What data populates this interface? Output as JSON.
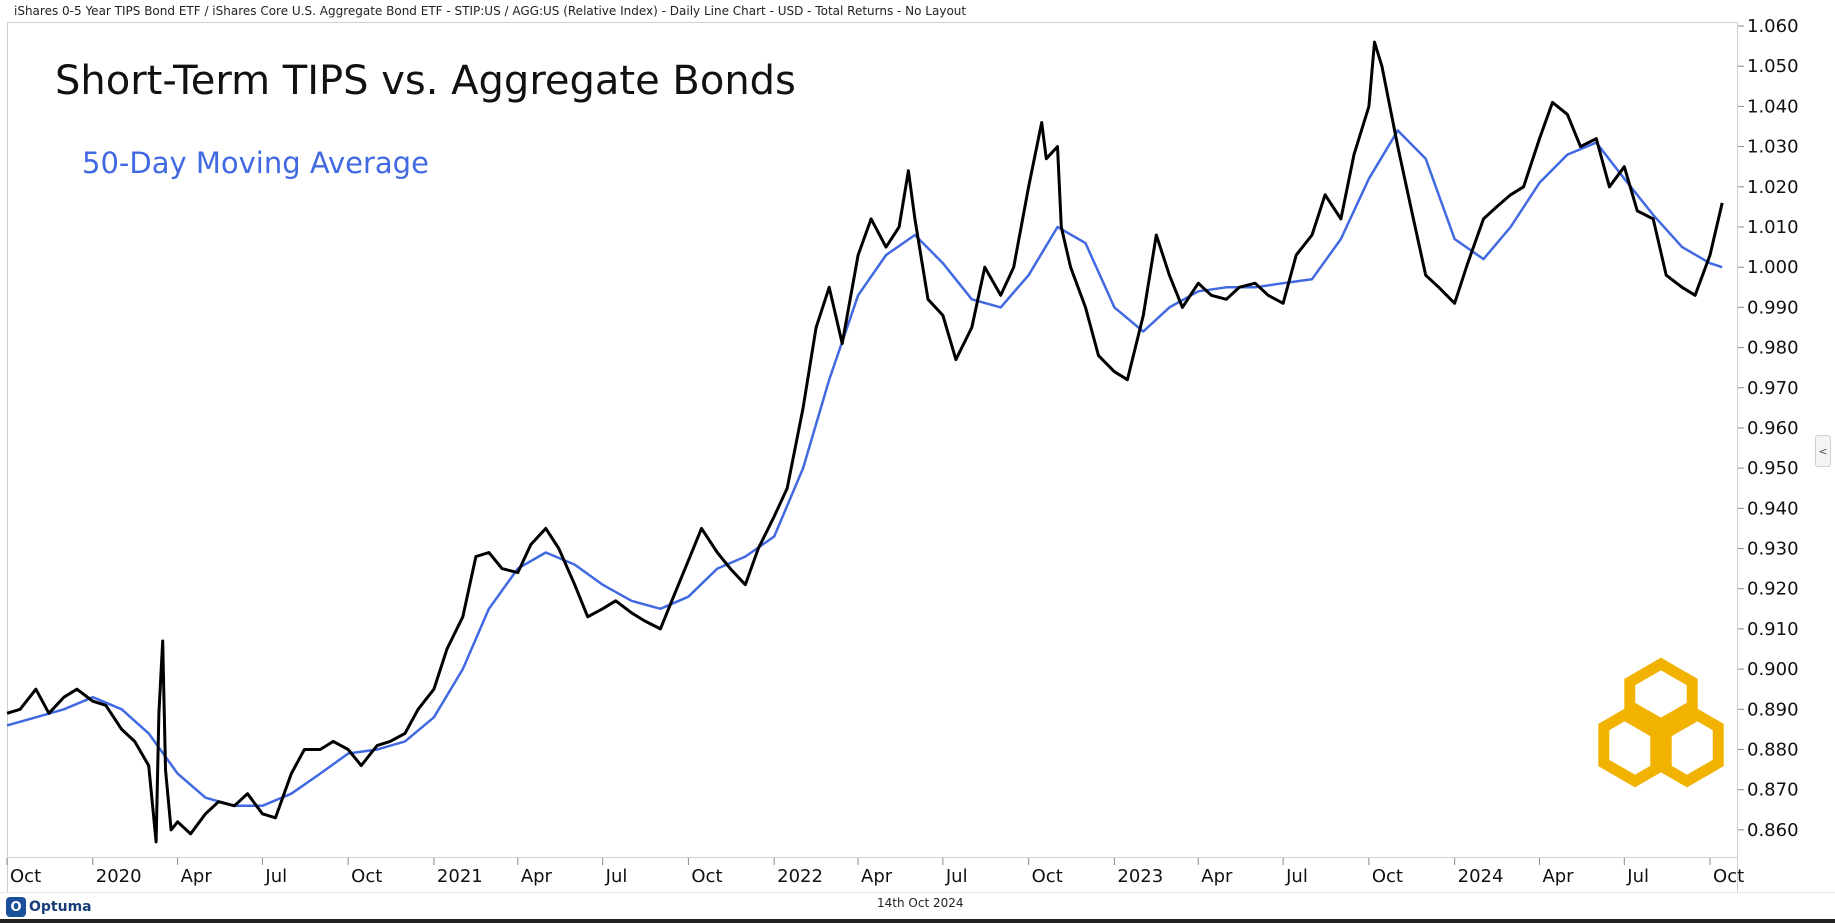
{
  "header": {
    "description": "iShares 0-5 Year TIPS Bond ETF / iShares Core U.S. Aggregate Bond ETF - STIP:US / AGG:US (Relative Index) - Daily Line Chart - USD - Total Returns - No Layout"
  },
  "footer": {
    "date": "14th Oct 2024",
    "brand": "Optuma",
    "brand_mark": "O"
  },
  "side_tab": {
    "label": "<"
  },
  "colors": {
    "price_line": "#000000",
    "moving_average": "#4169e1",
    "logo": "#f2b200"
  },
  "logo": {
    "icon": "hexagon-triple-logo"
  },
  "chart_data": {
    "type": "line",
    "title": "Short-Term TIPS vs. Aggregate Bonds",
    "xlabel": "",
    "ylabel": "",
    "ylim": [
      0.853,
      1.061
    ],
    "y_ticks": [
      "0.860",
      "0.870",
      "0.880",
      "0.890",
      "0.900",
      "0.910",
      "0.920",
      "0.930",
      "0.940",
      "0.950",
      "0.960",
      "0.970",
      "0.980",
      "0.990",
      "1.000",
      "1.010",
      "1.020",
      "1.030",
      "1.040",
      "1.050",
      "1.060"
    ],
    "x_range": [
      "2019-10-01",
      "2024-10-31"
    ],
    "x_ticks": [
      {
        "label": "Oct",
        "date": "2019-10-01"
      },
      {
        "label": "2020",
        "date": "2020-01-01"
      },
      {
        "label": "Apr",
        "date": "2020-04-01"
      },
      {
        "label": "Jul",
        "date": "2020-07-01"
      },
      {
        "label": "Oct",
        "date": "2020-10-01"
      },
      {
        "label": "2021",
        "date": "2021-01-01"
      },
      {
        "label": "Apr",
        "date": "2021-04-01"
      },
      {
        "label": "Jul",
        "date": "2021-07-01"
      },
      {
        "label": "Oct",
        "date": "2021-10-01"
      },
      {
        "label": "2022",
        "date": "2022-01-01"
      },
      {
        "label": "Apr",
        "date": "2022-04-01"
      },
      {
        "label": "Jul",
        "date": "2022-07-01"
      },
      {
        "label": "Oct",
        "date": "2022-10-01"
      },
      {
        "label": "2023",
        "date": "2023-01-01"
      },
      {
        "label": "Apr",
        "date": "2023-04-01"
      },
      {
        "label": "Jul",
        "date": "2023-07-01"
      },
      {
        "label": "Oct",
        "date": "2023-10-01"
      },
      {
        "label": "2024",
        "date": "2024-01-01"
      },
      {
        "label": "Apr",
        "date": "2024-04-01"
      },
      {
        "label": "Jul",
        "date": "2024-07-01"
      },
      {
        "label": "Oct",
        "date": "2024-10-01"
      }
    ],
    "series": [
      {
        "name": "",
        "color": "#000000",
        "points": [
          [
            "2019-10-01",
            0.889
          ],
          [
            "2019-10-15",
            0.89
          ],
          [
            "2019-11-01",
            0.895
          ],
          [
            "2019-11-15",
            0.889
          ],
          [
            "2019-12-01",
            0.893
          ],
          [
            "2019-12-15",
            0.895
          ],
          [
            "2020-01-01",
            0.892
          ],
          [
            "2020-01-15",
            0.891
          ],
          [
            "2020-02-01",
            0.885
          ],
          [
            "2020-02-15",
            0.882
          ],
          [
            "2020-03-01",
            0.876
          ],
          [
            "2020-03-09",
            0.857
          ],
          [
            "2020-03-12",
            0.889
          ],
          [
            "2020-03-16",
            0.907
          ],
          [
            "2020-03-19",
            0.875
          ],
          [
            "2020-03-25",
            0.86
          ],
          [
            "2020-04-01",
            0.862
          ],
          [
            "2020-04-15",
            0.859
          ],
          [
            "2020-05-01",
            0.864
          ],
          [
            "2020-05-15",
            0.867
          ],
          [
            "2020-06-01",
            0.866
          ],
          [
            "2020-06-15",
            0.869
          ],
          [
            "2020-07-01",
            0.864
          ],
          [
            "2020-07-15",
            0.863
          ],
          [
            "2020-08-01",
            0.874
          ],
          [
            "2020-08-15",
            0.88
          ],
          [
            "2020-09-01",
            0.88
          ],
          [
            "2020-09-15",
            0.882
          ],
          [
            "2020-10-01",
            0.88
          ],
          [
            "2020-10-15",
            0.876
          ],
          [
            "2020-11-01",
            0.881
          ],
          [
            "2020-11-15",
            0.882
          ],
          [
            "2020-12-01",
            0.884
          ],
          [
            "2020-12-15",
            0.89
          ],
          [
            "2021-01-01",
            0.895
          ],
          [
            "2021-01-15",
            0.905
          ],
          [
            "2021-02-01",
            0.913
          ],
          [
            "2021-02-15",
            0.928
          ],
          [
            "2021-03-01",
            0.929
          ],
          [
            "2021-03-15",
            0.925
          ],
          [
            "2021-04-01",
            0.924
          ],
          [
            "2021-04-15",
            0.931
          ],
          [
            "2021-05-01",
            0.935
          ],
          [
            "2021-05-15",
            0.93
          ],
          [
            "2021-06-01",
            0.921
          ],
          [
            "2021-06-15",
            0.913
          ],
          [
            "2021-07-01",
            0.915
          ],
          [
            "2021-07-15",
            0.917
          ],
          [
            "2021-08-01",
            0.914
          ],
          [
            "2021-08-15",
            0.912
          ],
          [
            "2021-09-01",
            0.91
          ],
          [
            "2021-09-15",
            0.918
          ],
          [
            "2021-10-01",
            0.927
          ],
          [
            "2021-10-15",
            0.935
          ],
          [
            "2021-11-01",
            0.929
          ],
          [
            "2021-11-15",
            0.925
          ],
          [
            "2021-12-01",
            0.921
          ],
          [
            "2021-12-15",
            0.93
          ],
          [
            "2022-01-01",
            0.938
          ],
          [
            "2022-01-15",
            0.945
          ],
          [
            "2022-02-01",
            0.965
          ],
          [
            "2022-02-15",
            0.985
          ],
          [
            "2022-03-01",
            0.995
          ],
          [
            "2022-03-15",
            0.981
          ],
          [
            "2022-04-01",
            1.003
          ],
          [
            "2022-04-15",
            1.012
          ],
          [
            "2022-05-01",
            1.005
          ],
          [
            "2022-05-15",
            1.01
          ],
          [
            "2022-05-25",
            1.024
          ],
          [
            "2022-06-01",
            1.012
          ],
          [
            "2022-06-15",
            0.992
          ],
          [
            "2022-07-01",
            0.988
          ],
          [
            "2022-07-15",
            0.977
          ],
          [
            "2022-08-01",
            0.985
          ],
          [
            "2022-08-15",
            1.0
          ],
          [
            "2022-09-01",
            0.993
          ],
          [
            "2022-09-15",
            1.0
          ],
          [
            "2022-10-01",
            1.02
          ],
          [
            "2022-10-15",
            1.036
          ],
          [
            "2022-10-20",
            1.027
          ],
          [
            "2022-11-01",
            1.03
          ],
          [
            "2022-11-05",
            1.01
          ],
          [
            "2022-11-15",
            1.0
          ],
          [
            "2022-12-01",
            0.99
          ],
          [
            "2022-12-15",
            0.978
          ],
          [
            "2023-01-01",
            0.974
          ],
          [
            "2023-01-15",
            0.972
          ],
          [
            "2023-02-01",
            0.988
          ],
          [
            "2023-02-15",
            1.008
          ],
          [
            "2023-03-01",
            0.998
          ],
          [
            "2023-03-15",
            0.99
          ],
          [
            "2023-04-01",
            0.996
          ],
          [
            "2023-04-15",
            0.993
          ],
          [
            "2023-05-01",
            0.992
          ],
          [
            "2023-05-15",
            0.995
          ],
          [
            "2023-06-01",
            0.996
          ],
          [
            "2023-06-15",
            0.993
          ],
          [
            "2023-07-01",
            0.991
          ],
          [
            "2023-07-15",
            1.003
          ],
          [
            "2023-08-01",
            1.008
          ],
          [
            "2023-08-15",
            1.018
          ],
          [
            "2023-09-01",
            1.012
          ],
          [
            "2023-09-15",
            1.028
          ],
          [
            "2023-10-01",
            1.04
          ],
          [
            "2023-10-07",
            1.056
          ],
          [
            "2023-10-15",
            1.05
          ],
          [
            "2023-11-01",
            1.03
          ],
          [
            "2023-11-15",
            1.015
          ],
          [
            "2023-12-01",
            0.998
          ],
          [
            "2023-12-15",
            0.995
          ],
          [
            "2024-01-01",
            0.991
          ],
          [
            "2024-01-15",
            1.001
          ],
          [
            "2024-02-01",
            1.012
          ],
          [
            "2024-02-15",
            1.015
          ],
          [
            "2024-03-01",
            1.018
          ],
          [
            "2024-03-15",
            1.02
          ],
          [
            "2024-04-01",
            1.032
          ],
          [
            "2024-04-15",
            1.041
          ],
          [
            "2024-05-01",
            1.038
          ],
          [
            "2024-05-15",
            1.03
          ],
          [
            "2024-06-01",
            1.032
          ],
          [
            "2024-06-15",
            1.02
          ],
          [
            "2024-07-01",
            1.025
          ],
          [
            "2024-07-15",
            1.014
          ],
          [
            "2024-08-01",
            1.012
          ],
          [
            "2024-08-15",
            0.998
          ],
          [
            "2024-09-01",
            0.995
          ],
          [
            "2024-09-15",
            0.993
          ],
          [
            "2024-10-01",
            1.003
          ],
          [
            "2024-10-14",
            1.016
          ]
        ]
      },
      {
        "name": "50-Day Moving Average",
        "color": "#4169e1",
        "points": [
          [
            "2019-10-01",
            0.886
          ],
          [
            "2019-11-01",
            0.888
          ],
          [
            "2019-12-01",
            0.89
          ],
          [
            "2020-01-01",
            0.893
          ],
          [
            "2020-02-01",
            0.89
          ],
          [
            "2020-03-01",
            0.884
          ],
          [
            "2020-04-01",
            0.874
          ],
          [
            "2020-05-01",
            0.868
          ],
          [
            "2020-06-01",
            0.866
          ],
          [
            "2020-07-01",
            0.866
          ],
          [
            "2020-08-01",
            0.869
          ],
          [
            "2020-09-01",
            0.874
          ],
          [
            "2020-10-01",
            0.879
          ],
          [
            "2020-11-01",
            0.88
          ],
          [
            "2020-12-01",
            0.882
          ],
          [
            "2021-01-01",
            0.888
          ],
          [
            "2021-02-01",
            0.9
          ],
          [
            "2021-03-01",
            0.915
          ],
          [
            "2021-04-01",
            0.925
          ],
          [
            "2021-05-01",
            0.929
          ],
          [
            "2021-06-01",
            0.926
          ],
          [
            "2021-07-01",
            0.921
          ],
          [
            "2021-08-01",
            0.917
          ],
          [
            "2021-09-01",
            0.915
          ],
          [
            "2021-10-01",
            0.918
          ],
          [
            "2021-11-01",
            0.925
          ],
          [
            "2021-12-01",
            0.928
          ],
          [
            "2022-01-01",
            0.933
          ],
          [
            "2022-02-01",
            0.95
          ],
          [
            "2022-03-01",
            0.972
          ],
          [
            "2022-04-01",
            0.993
          ],
          [
            "2022-05-01",
            1.003
          ],
          [
            "2022-06-01",
            1.008
          ],
          [
            "2022-07-01",
            1.001
          ],
          [
            "2022-08-01",
            0.992
          ],
          [
            "2022-09-01",
            0.99
          ],
          [
            "2022-10-01",
            0.998
          ],
          [
            "2022-11-01",
            1.01
          ],
          [
            "2022-12-01",
            1.006
          ],
          [
            "2023-01-01",
            0.99
          ],
          [
            "2023-02-01",
            0.984
          ],
          [
            "2023-03-01",
            0.99
          ],
          [
            "2023-04-01",
            0.994
          ],
          [
            "2023-05-01",
            0.995
          ],
          [
            "2023-06-01",
            0.995
          ],
          [
            "2023-07-01",
            0.996
          ],
          [
            "2023-08-01",
            0.997
          ],
          [
            "2023-09-01",
            1.007
          ],
          [
            "2023-10-01",
            1.022
          ],
          [
            "2023-11-01",
            1.034
          ],
          [
            "2023-12-01",
            1.027
          ],
          [
            "2024-01-01",
            1.007
          ],
          [
            "2024-02-01",
            1.002
          ],
          [
            "2024-03-01",
            1.01
          ],
          [
            "2024-04-01",
            1.021
          ],
          [
            "2024-05-01",
            1.028
          ],
          [
            "2024-06-01",
            1.031
          ],
          [
            "2024-07-01",
            1.022
          ],
          [
            "2024-08-01",
            1.013
          ],
          [
            "2024-09-01",
            1.005
          ],
          [
            "2024-10-01",
            1.001
          ],
          [
            "2024-10-14",
            1.0
          ]
        ]
      }
    ],
    "legend": "top-left",
    "grid": false
  }
}
